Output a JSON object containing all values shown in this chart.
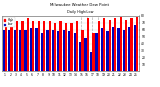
{
  "title": "Milwaukee Weather Dew Point",
  "subtitle": "Daily High/Low",
  "background_color": "#ffffff",
  "bar_high_color": "#ff0000",
  "bar_low_color": "#0000bb",
  "ylim": [
    0,
    80
  ],
  "n_bars": 25,
  "high_values": [
    72,
    68,
    72,
    72,
    76,
    73,
    72,
    72,
    72,
    70,
    72,
    70,
    70,
    72,
    60,
    76,
    55,
    72,
    76,
    74,
    76,
    78,
    74,
    76,
    78
  ],
  "low_values": [
    60,
    60,
    60,
    60,
    60,
    62,
    62,
    55,
    60,
    60,
    58,
    60,
    58,
    55,
    42,
    48,
    28,
    55,
    62,
    58,
    64,
    62,
    60,
    64,
    66
  ],
  "x_labels": [
    "1",
    "2",
    "3",
    "4",
    "5",
    "6",
    "7",
    "8",
    "9",
    "10",
    "11",
    "12",
    "13",
    "14",
    "15",
    "16",
    "17",
    "18",
    "19",
    "20",
    "21",
    "22",
    "23",
    "24",
    "25"
  ],
  "yticks": [
    10,
    20,
    30,
    40,
    50,
    60,
    70,
    80
  ],
  "ytick_labels": [
    "10",
    "20",
    "30",
    "40",
    "50",
    "60",
    "70",
    "80"
  ],
  "dashed_cols": [
    14,
    15,
    16,
    17
  ],
  "legend_high": "High",
  "legend_low": "Low",
  "grid_color": "#dddddd"
}
